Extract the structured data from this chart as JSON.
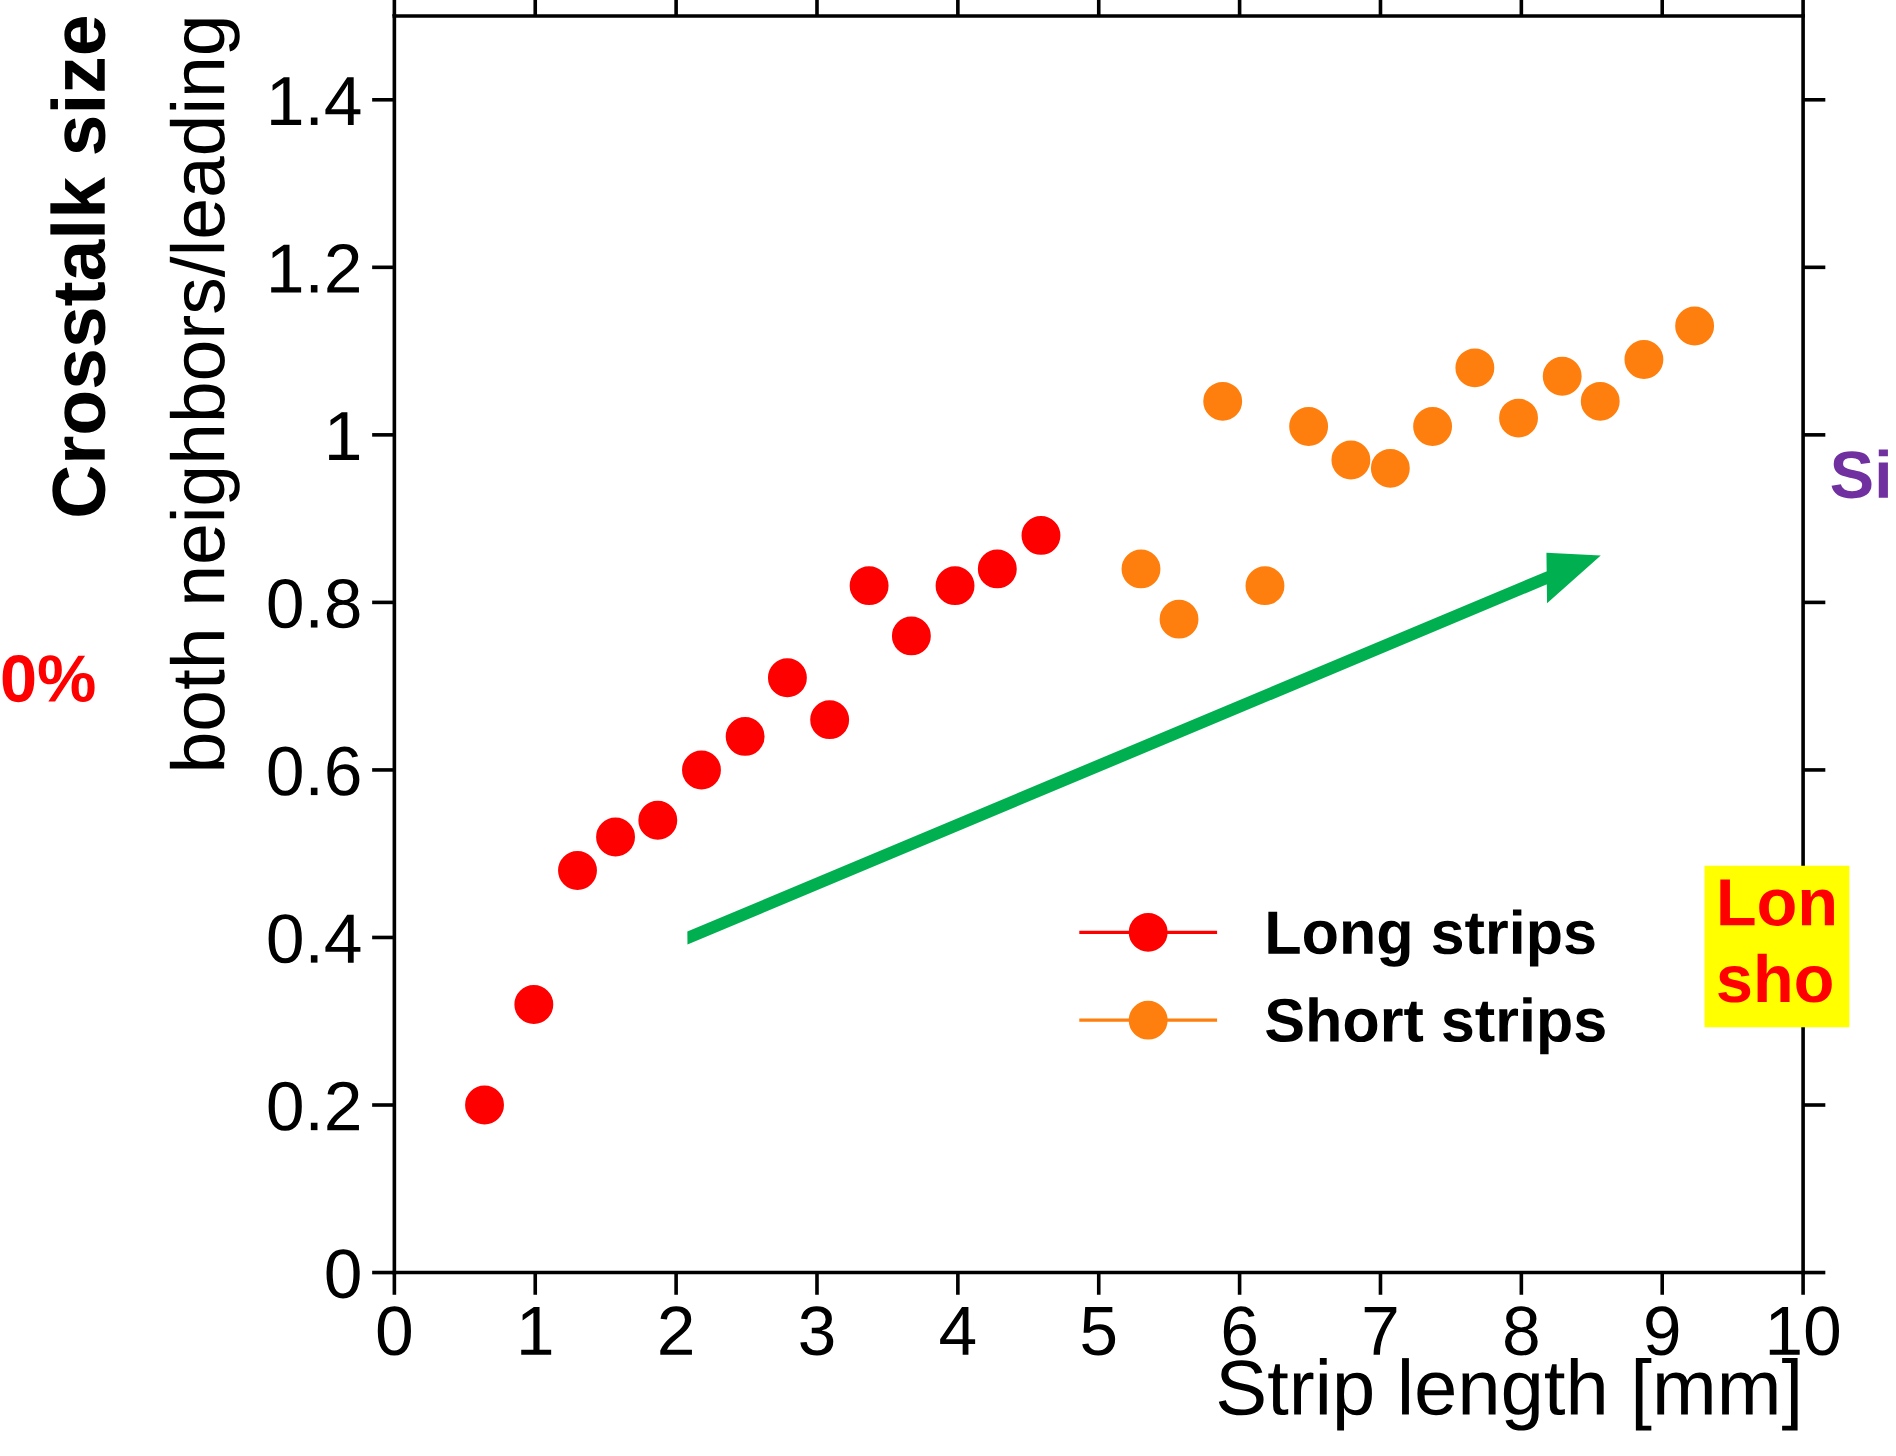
{
  "chart_data": {
    "type": "scatter",
    "xlabel": "Strip length [mm]",
    "ylabel": "Crosstalk size\nboth neighbors/leading",
    "xlim": [
      0,
      10
    ],
    "xticks": [
      0,
      1,
      2,
      3,
      4,
      5,
      6,
      7,
      8,
      9,
      10
    ],
    "ylim": [
      0,
      1.5
    ],
    "yticks": [
      0,
      0.2,
      0.4,
      0.6,
      0.8,
      1,
      1.2,
      1.4
    ],
    "grid": false,
    "legend": "bottom right",
    "marker": "circle",
    "series": [
      {
        "name": "Long strips",
        "color": "#ff0000",
        "x": [
          0.64,
          0.99,
          1.3,
          1.57,
          1.87,
          2.18,
          2.49,
          2.79,
          3.09,
          3.37,
          3.67,
          3.98,
          4.28,
          4.59
        ],
        "values": [
          0.2,
          0.32,
          0.48,
          0.52,
          0.54,
          0.6,
          0.64,
          0.71,
          0.66,
          0.82,
          0.76,
          0.82,
          0.84,
          0.88
        ]
      },
      {
        "name": "Short strips",
        "color": "#ff7f0e",
        "x": [
          5.3,
          5.57,
          5.88,
          6.18,
          6.49,
          6.79,
          7.07,
          7.37,
          7.67,
          7.98,
          8.29,
          8.56,
          8.87,
          9.23
        ],
        "values": [
          0.84,
          0.78,
          1.04,
          0.82,
          1.01,
          0.97,
          0.96,
          1.01,
          1.08,
          1.02,
          1.07,
          1.04,
          1.09,
          1.13
        ]
      }
    ],
    "annotations": [
      "0%",
      "Si",
      "Lon\nsho"
    ]
  }
}
